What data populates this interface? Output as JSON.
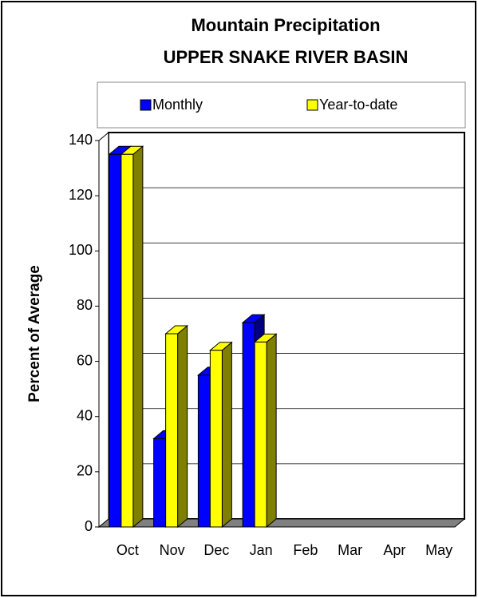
{
  "chart_data": {
    "type": "bar3d",
    "title": "Mountain Precipitation",
    "subtitle": "UPPER SNAKE RIVER BASIN",
    "y_label": "Percent of Average",
    "categories": [
      "Oct",
      "Nov",
      "Dec",
      "Jan",
      "Feb",
      "Mar",
      "Apr",
      "May"
    ],
    "series": [
      {
        "name": "Monthly",
        "color": "#0000ff",
        "side_color": "#000080",
        "values": [
          135,
          32,
          55,
          74,
          null,
          null,
          null,
          null
        ]
      },
      {
        "name": "Year-to-date",
        "color": "#ffff00",
        "side_color": "#808000",
        "values": [
          135,
          70,
          64,
          67,
          null,
          null,
          null,
          null
        ]
      }
    ],
    "ylim": [
      0,
      140
    ],
    "yticks": [
      0,
      20,
      40,
      60,
      80,
      100,
      120,
      140
    ],
    "grid": true,
    "legend": "top"
  }
}
